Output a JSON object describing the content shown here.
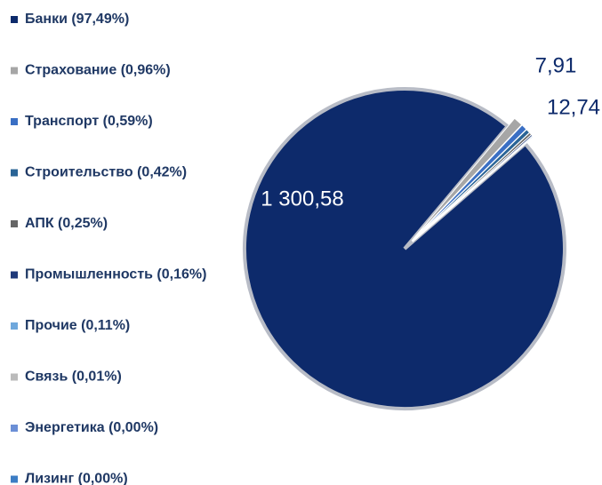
{
  "chart_data": {
    "type": "pie",
    "categories": [
      "Банки (97,49%)",
      "Страхование (0,96%)",
      "Транспорт (0,59%)",
      "Строительство (0,42%)",
      "АПК (0,25%)",
      "Промышленность (0,16%)",
      "Прочие (0,11%)",
      "Связь (0,01%)",
      "Энергетика (0,00%)",
      "Лизинг (0,00%)"
    ],
    "values": [
      1300.58,
      12.74,
      7.91,
      5.6,
      3.3,
      2.1,
      1.5,
      0.13,
      0,
      0
    ],
    "value_labels": [
      "1 300,58",
      "12,74",
      "7,91",
      null,
      null,
      null,
      null,
      null,
      null,
      null
    ],
    "colors": [
      "#0d2a6b",
      "#a6a6a6",
      "#3a6fc4",
      "#2a6496",
      "#666666",
      "#1f3a7a",
      "#6fa8dc",
      "#bbbbbb",
      "#6b8fd6",
      "#3c7dc4"
    ],
    "legend": "left"
  }
}
